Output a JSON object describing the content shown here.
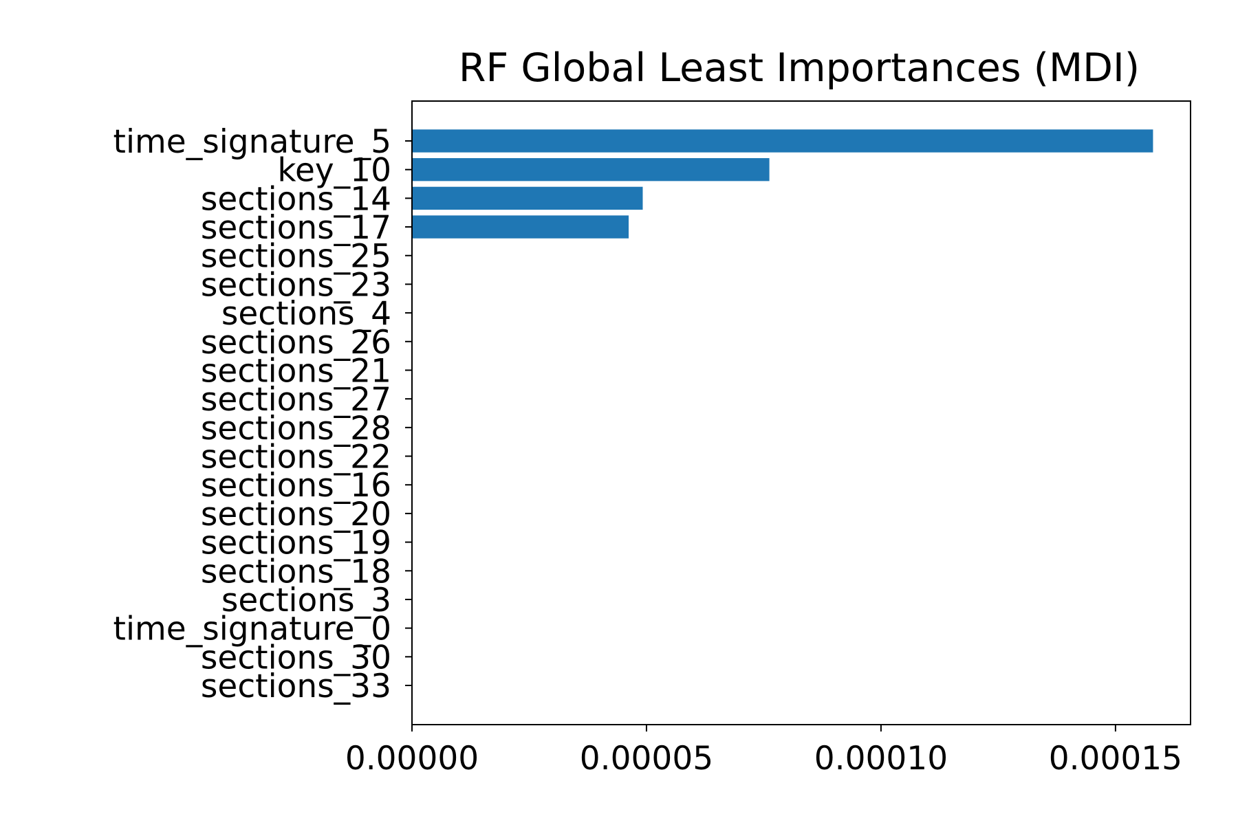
{
  "chart_data": {
    "type": "bar",
    "orientation": "horizontal",
    "title": "RF Global Least Importances (MDI)",
    "xlabel": "",
    "ylabel": "",
    "categories": [
      "time_signature_5",
      "key_10",
      "sections_14",
      "sections_17",
      "sections_25",
      "sections_23",
      "sections_4",
      "sections_26",
      "sections_21",
      "sections_27",
      "sections_28",
      "sections_22",
      "sections_16",
      "sections_20",
      "sections_19",
      "sections_18",
      "sections_3",
      "time_signature_0",
      "sections_30",
      "sections_33"
    ],
    "values": [
      0.000158,
      7.62e-05,
      4.92e-05,
      4.62e-05,
      0,
      0,
      0,
      0,
      0,
      0,
      0,
      0,
      0,
      0,
      0,
      0,
      0,
      0,
      0,
      0
    ],
    "xlim": [
      0,
      0.000166
    ],
    "xticks": [
      0,
      5e-05,
      0.0001,
      0.00015
    ],
    "xtick_labels": [
      "0.00000",
      "0.00005",
      "0.00010",
      "0.00015"
    ],
    "grid": false,
    "legend": "none",
    "bar_color": "#1f77b4"
  }
}
